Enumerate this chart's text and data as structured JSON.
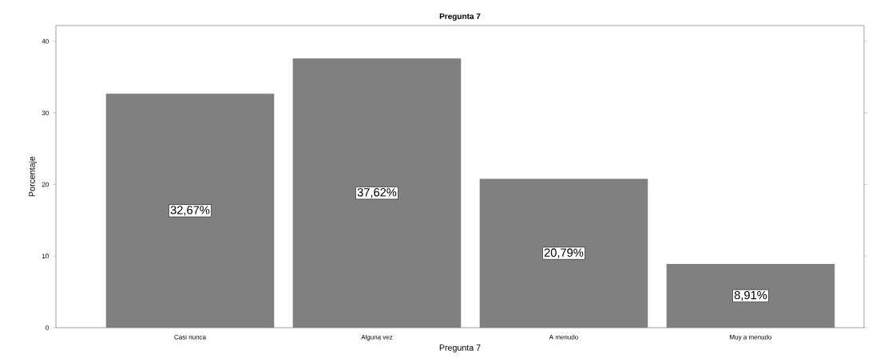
{
  "chart_data": {
    "type": "bar",
    "title": "Pregunta 7",
    "xlabel": "Pregunta 7",
    "ylabel": "Porcentaje",
    "categories": [
      "Casi nunca",
      "Alguna vez",
      "A menudo",
      "Muy a menudo"
    ],
    "values": [
      32.67,
      37.62,
      20.79,
      8.91
    ],
    "value_labels": [
      "32,67%",
      "37,62%",
      "20,79%",
      "8,91%"
    ],
    "color": "#808080",
    "ylim": [
      0,
      42.2
    ],
    "yticks": [
      0,
      10,
      20,
      30,
      40
    ],
    "grid": false
  }
}
